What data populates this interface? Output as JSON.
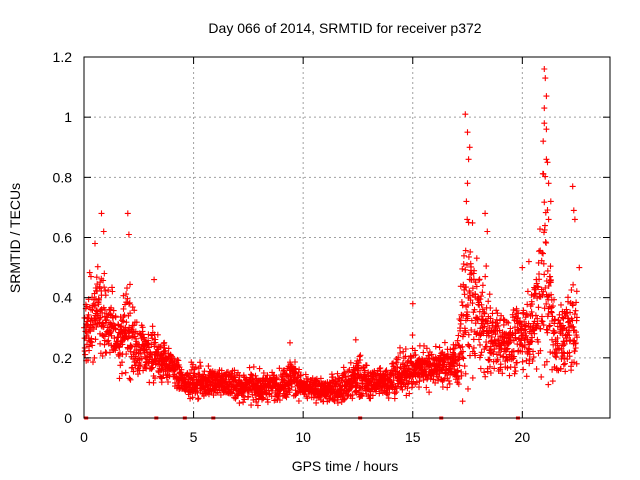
{
  "chart_data": {
    "type": "scatter",
    "title": "Day 066 of 2014, SRMTID for receiver p372",
    "xlabel": "GPS time / hours",
    "ylabel": "SRMTID / TECUs",
    "xlim": [
      0,
      24
    ],
    "ylim": [
      0,
      1.2
    ],
    "xticks": [
      0,
      5,
      10,
      15,
      20
    ],
    "xtick_labels": [
      "0",
      "5",
      "10",
      "15",
      "20"
    ],
    "yticks": [
      0,
      0.2,
      0.4,
      0.6,
      0.8,
      1.0,
      1.2
    ],
    "ytick_labels": [
      "0",
      "0.2",
      "0.4",
      "0.6",
      "0.8",
      "1",
      "1.2"
    ],
    "grid": true,
    "marker": "plus",
    "color": "#ff0000",
    "series": [
      {
        "name": "SRMTID",
        "envelope": [
          {
            "x": 0.0,
            "center": 0.3,
            "spread": 0.1
          },
          {
            "x": 0.5,
            "center": 0.36,
            "spread": 0.14
          },
          {
            "x": 1.0,
            "center": 0.32,
            "spread": 0.16
          },
          {
            "x": 1.5,
            "center": 0.26,
            "spread": 0.09
          },
          {
            "x": 2.0,
            "center": 0.3,
            "spread": 0.18
          },
          {
            "x": 2.5,
            "center": 0.22,
            "spread": 0.08
          },
          {
            "x": 3.0,
            "center": 0.22,
            "spread": 0.09
          },
          {
            "x": 3.5,
            "center": 0.2,
            "spread": 0.08
          },
          {
            "x": 4.0,
            "center": 0.17,
            "spread": 0.06
          },
          {
            "x": 4.5,
            "center": 0.12,
            "spread": 0.04
          },
          {
            "x": 5.0,
            "center": 0.12,
            "spread": 0.05
          },
          {
            "x": 6.0,
            "center": 0.12,
            "spread": 0.05
          },
          {
            "x": 7.0,
            "center": 0.11,
            "spread": 0.05
          },
          {
            "x": 8.0,
            "center": 0.1,
            "spread": 0.05
          },
          {
            "x": 9.0,
            "center": 0.11,
            "spread": 0.05
          },
          {
            "x": 9.5,
            "center": 0.14,
            "spread": 0.07
          },
          {
            "x": 10.0,
            "center": 0.1,
            "spread": 0.04
          },
          {
            "x": 11.0,
            "center": 0.09,
            "spread": 0.04
          },
          {
            "x": 12.0,
            "center": 0.11,
            "spread": 0.06
          },
          {
            "x": 12.5,
            "center": 0.14,
            "spread": 0.08
          },
          {
            "x": 13.0,
            "center": 0.11,
            "spread": 0.05
          },
          {
            "x": 14.0,
            "center": 0.13,
            "spread": 0.06
          },
          {
            "x": 15.0,
            "center": 0.17,
            "spread": 0.08
          },
          {
            "x": 16.0,
            "center": 0.17,
            "spread": 0.06
          },
          {
            "x": 17.0,
            "center": 0.18,
            "spread": 0.08
          },
          {
            "x": 17.5,
            "center": 0.4,
            "spread": 0.3
          },
          {
            "x": 18.0,
            "center": 0.32,
            "spread": 0.18
          },
          {
            "x": 18.5,
            "center": 0.28,
            "spread": 0.15
          },
          {
            "x": 19.0,
            "center": 0.24,
            "spread": 0.1
          },
          {
            "x": 19.5,
            "center": 0.25,
            "spread": 0.1
          },
          {
            "x": 20.0,
            "center": 0.28,
            "spread": 0.12
          },
          {
            "x": 20.5,
            "center": 0.3,
            "spread": 0.14
          },
          {
            "x": 21.0,
            "center": 0.5,
            "spread": 0.4
          },
          {
            "x": 21.5,
            "center": 0.25,
            "spread": 0.12
          },
          {
            "x": 22.0,
            "center": 0.28,
            "spread": 0.14
          },
          {
            "x": 22.5,
            "center": 0.3,
            "spread": 0.14
          }
        ],
        "spikes": [
          {
            "x": 0.8,
            "y": 0.68
          },
          {
            "x": 0.9,
            "y": 0.62
          },
          {
            "x": 0.5,
            "y": 0.58
          },
          {
            "x": 2.0,
            "y": 0.68
          },
          {
            "x": 2.05,
            "y": 0.61
          },
          {
            "x": 3.2,
            "y": 0.46
          },
          {
            "x": 9.4,
            "y": 0.25
          },
          {
            "x": 12.4,
            "y": 0.26
          },
          {
            "x": 15.0,
            "y": 0.38
          },
          {
            "x": 17.4,
            "y": 1.01
          },
          {
            "x": 17.5,
            "y": 0.95
          },
          {
            "x": 17.6,
            "y": 0.9
          },
          {
            "x": 17.55,
            "y": 0.86
          },
          {
            "x": 17.5,
            "y": 0.78
          },
          {
            "x": 17.45,
            "y": 0.72
          },
          {
            "x": 17.55,
            "y": 0.65
          },
          {
            "x": 18.3,
            "y": 0.68
          },
          {
            "x": 18.4,
            "y": 0.62
          },
          {
            "x": 20.0,
            "y": 0.5
          },
          {
            "x": 20.3,
            "y": 0.52
          },
          {
            "x": 21.0,
            "y": 1.16
          },
          {
            "x": 21.05,
            "y": 1.13
          },
          {
            "x": 21.1,
            "y": 1.07
          },
          {
            "x": 21.0,
            "y": 1.03
          },
          {
            "x": 21.0,
            "y": 0.98
          },
          {
            "x": 21.1,
            "y": 0.96
          },
          {
            "x": 20.95,
            "y": 0.92
          },
          {
            "x": 21.1,
            "y": 0.86
          },
          {
            "x": 21.15,
            "y": 0.85
          },
          {
            "x": 21.2,
            "y": 0.78
          },
          {
            "x": 21.3,
            "y": 0.72
          },
          {
            "x": 21.2,
            "y": 0.66
          },
          {
            "x": 22.3,
            "y": 0.77
          },
          {
            "x": 22.35,
            "y": 0.69
          },
          {
            "x": 22.4,
            "y": 0.66
          },
          {
            "x": 22.6,
            "y": 0.5
          }
        ],
        "baseline_marks": [
          0.1,
          3.3,
          4.6,
          5.9,
          12.6,
          16.3,
          19.8
        ]
      }
    ]
  }
}
